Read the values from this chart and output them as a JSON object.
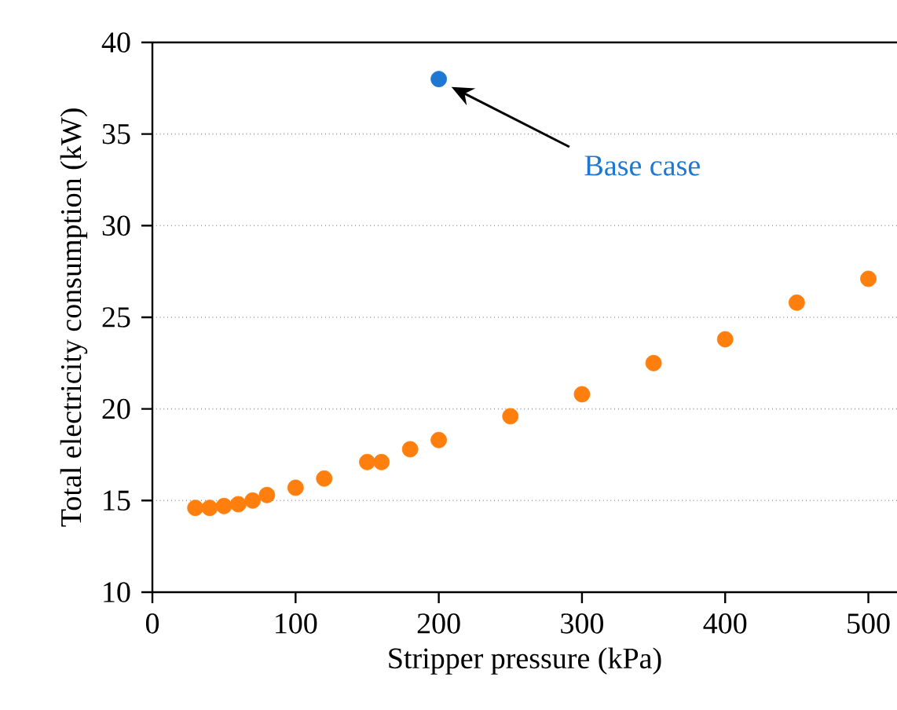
{
  "chart_data": {
    "type": "scatter",
    "xlabel": "Stripper pressure (kPa)",
    "ylabel": "Total electricity consumption (kW)",
    "xlim": [
      0,
      520
    ],
    "ylim": [
      10,
      40
    ],
    "xticks": [
      0,
      100,
      200,
      300,
      400,
      500
    ],
    "yticks": [
      10,
      15,
      20,
      25,
      30,
      35,
      40
    ],
    "grid": "y",
    "marker": "circle",
    "series": [
      {
        "color": "#ff7f0e",
        "x": [
          30,
          40,
          50,
          60,
          70,
          80,
          100,
          120,
          150,
          160,
          180,
          200,
          250,
          300,
          350,
          400,
          450,
          500
        ],
        "values": [
          14.6,
          14.6,
          14.7,
          14.8,
          15.0,
          15.3,
          15.7,
          16.2,
          17.1,
          17.1,
          17.8,
          18.3,
          19.6,
          20.8,
          22.5,
          23.8,
          25.8,
          27.1
        ]
      },
      {
        "color": "#1f77d4",
        "x": [
          200
        ],
        "values": [
          38.0
        ]
      }
    ],
    "annotations": [
      "Base case"
    ]
  }
}
